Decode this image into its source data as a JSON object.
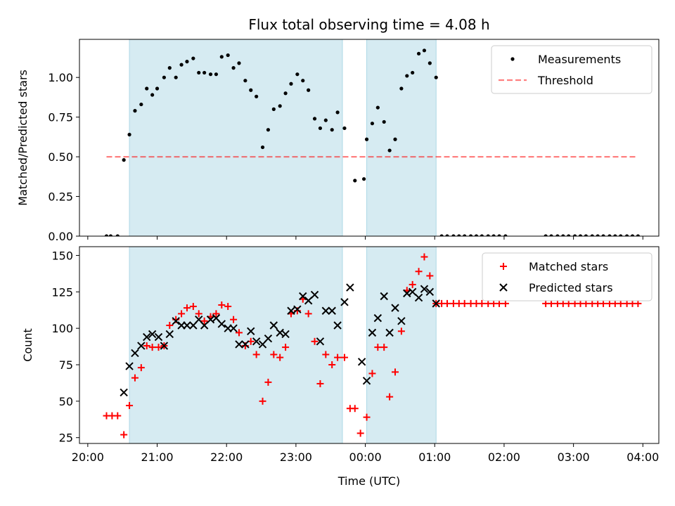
{
  "title": "Flux total observing time = 4.08 h",
  "colors": {
    "shade": "#add8e6",
    "threshold": "#ff0000",
    "measurement": "#000000",
    "matched": "#ff0000",
    "predicted": "#000000"
  },
  "chart_data": [
    {
      "type": "scatter",
      "panel": "top",
      "ylabel": "Matched/Predicted stars",
      "xlabel": "",
      "x_unit": "hours after 20:00 UTC",
      "xlim": [
        -0.12,
        8.23
      ],
      "ylim": [
        0,
        1.24
      ],
      "yticks": [
        "0.00",
        "0.25",
        "0.50",
        "0.75",
        "1.00"
      ],
      "yticks_values": [
        0,
        0.25,
        0.5,
        0.75,
        1.0
      ],
      "legend": [
        "Measurements",
        "Threshold"
      ],
      "legend_position": "top-right",
      "shaded_intervals": [
        [
          0.6,
          3.67
        ],
        [
          4.02,
          5.02
        ]
      ],
      "threshold": {
        "name": "Threshold",
        "y": 0.5,
        "x_range": [
          0.27,
          7.92
        ]
      },
      "series": [
        {
          "name": "Measurements",
          "x": [
            0.27,
            0.33,
            0.43,
            0.52,
            0.6,
            0.68,
            0.77,
            0.85,
            0.93,
            1.0,
            1.1,
            1.18,
            1.27,
            1.35,
            1.43,
            1.52,
            1.6,
            1.68,
            1.77,
            1.85,
            1.93,
            2.02,
            2.1,
            2.18,
            2.27,
            2.35,
            2.43,
            2.52,
            2.6,
            2.68,
            2.77,
            2.85,
            2.93,
            3.02,
            3.1,
            3.18,
            3.27,
            3.35,
            3.43,
            3.52,
            3.6,
            3.7,
            3.85,
            3.98,
            4.02,
            4.1,
            4.18,
            4.27,
            4.35,
            4.43,
            4.52,
            4.6,
            4.68,
            4.77,
            4.85,
            4.93,
            5.02,
            5.1,
            5.18,
            5.27,
            5.35,
            5.43,
            5.52,
            5.6,
            5.68,
            5.77,
            5.85,
            5.93,
            6.02,
            6.6,
            6.68,
            6.77,
            6.85,
            6.93,
            7.02,
            7.1,
            7.18,
            7.27,
            7.35,
            7.43,
            7.52,
            7.6,
            7.68,
            7.77,
            7.85,
            7.93
          ],
          "y": [
            0,
            0,
            0,
            0.48,
            0.64,
            0.79,
            0.83,
            0.93,
            0.89,
            0.93,
            1.0,
            1.06,
            1.0,
            1.08,
            1.1,
            1.12,
            1.03,
            1.03,
            1.02,
            1.02,
            1.13,
            1.14,
            1.06,
            1.09,
            0.98,
            0.92,
            0.88,
            0.56,
            0.67,
            0.8,
            0.82,
            0.9,
            0.96,
            1.02,
            0.98,
            0.92,
            0.74,
            0.68,
            0.73,
            0.67,
            0.78,
            0.68,
            0.35,
            0.36,
            0.61,
            0.71,
            0.81,
            0.72,
            0.54,
            0.61,
            0.93,
            1.01,
            1.03,
            1.15,
            1.17,
            1.09,
            1.0,
            0,
            0,
            0,
            0,
            0,
            0,
            0,
            0,
            0,
            0,
            0,
            0,
            0,
            0,
            0,
            0,
            0,
            0,
            0,
            0,
            0,
            0,
            0,
            0,
            0,
            0,
            0,
            0,
            0
          ]
        }
      ]
    },
    {
      "type": "scatter",
      "panel": "bottom",
      "ylabel": "Count",
      "xlabel": "Time (UTC)",
      "x_unit": "hours after 20:00 UTC",
      "xlim": [
        -0.12,
        8.23
      ],
      "ylim": [
        21,
        156
      ],
      "xticks": [
        "20:00",
        "21:00",
        "22:00",
        "23:00",
        "00:00",
        "01:00",
        "02:00",
        "03:00",
        "04:00"
      ],
      "xticks_values": [
        0,
        1,
        2,
        3,
        4,
        5,
        6,
        7,
        8
      ],
      "yticks": [
        "25",
        "50",
        "75",
        "100",
        "125",
        "150"
      ],
      "yticks_values": [
        25,
        50,
        75,
        100,
        125,
        150
      ],
      "legend": [
        "Matched stars",
        "Predicted stars"
      ],
      "legend_position": "top-right",
      "shaded_intervals": [
        [
          0.6,
          3.67
        ],
        [
          4.02,
          5.02
        ]
      ],
      "series": [
        {
          "name": "Matched stars",
          "x": [
            0.27,
            0.35,
            0.43,
            0.52,
            0.6,
            0.68,
            0.77,
            0.85,
            0.93,
            1.02,
            1.1,
            1.18,
            1.27,
            1.35,
            1.43,
            1.52,
            1.6,
            1.68,
            1.77,
            1.85,
            1.93,
            2.02,
            2.1,
            2.18,
            2.27,
            2.35,
            2.43,
            2.52,
            2.6,
            2.68,
            2.77,
            2.85,
            2.93,
            3.02,
            3.1,
            3.18,
            3.27,
            3.35,
            3.43,
            3.52,
            3.6,
            3.7,
            3.78,
            3.85,
            3.93,
            4.02,
            4.1,
            4.18,
            4.27,
            4.35,
            4.43,
            4.52,
            4.6,
            4.68,
            4.77,
            4.85,
            4.93,
            5.02,
            5.1,
            5.18,
            5.27,
            5.35,
            5.43,
            5.52,
            5.6,
            5.68,
            5.77,
            5.85,
            5.93,
            6.02,
            6.6,
            6.68,
            6.77,
            6.85,
            6.93,
            7.02,
            7.1,
            7.18,
            7.27,
            7.35,
            7.43,
            7.52,
            7.6,
            7.68,
            7.77,
            7.85,
            7.93
          ],
          "y": [
            40,
            40,
            40,
            27,
            47,
            66,
            73,
            88,
            87,
            87,
            88,
            102,
            106,
            110,
            114,
            115,
            110,
            105,
            108,
            110,
            116,
            115,
            106,
            97,
            88,
            91,
            82,
            50,
            63,
            82,
            80,
            87,
            110,
            112,
            120,
            110,
            91,
            62,
            82,
            75,
            80,
            80,
            45,
            45,
            28,
            39,
            69,
            87,
            87,
            53,
            70,
            98,
            126,
            130,
            139,
            149,
            136,
            117,
            117,
            117,
            117,
            117,
            117,
            117,
            117,
            117,
            117,
            117,
            117,
            117,
            117,
            117,
            117,
            117,
            117,
            117,
            117,
            117,
            117,
            117,
            117,
            117,
            117,
            117,
            117,
            117,
            117
          ]
        },
        {
          "name": "Predicted stars",
          "x": [
            0.52,
            0.6,
            0.68,
            0.77,
            0.85,
            0.93,
            1.02,
            1.1,
            1.18,
            1.27,
            1.35,
            1.43,
            1.52,
            1.6,
            1.68,
            1.77,
            1.85,
            1.93,
            2.02,
            2.1,
            2.18,
            2.27,
            2.35,
            2.43,
            2.52,
            2.6,
            2.68,
            2.77,
            2.85,
            2.93,
            3.02,
            3.1,
            3.18,
            3.27,
            3.35,
            3.43,
            3.52,
            3.6,
            3.7,
            3.78,
            3.95,
            4.02,
            4.1,
            4.18,
            4.27,
            4.35,
            4.43,
            4.52,
            4.6,
            4.68,
            4.77,
            4.85,
            4.93,
            5.02
          ],
          "y": [
            56,
            74,
            83,
            88,
            94,
            96,
            94,
            88,
            96,
            105,
            102,
            102,
            102,
            106,
            102,
            106,
            107,
            103,
            100,
            100,
            89,
            89,
            98,
            91,
            89,
            93,
            102,
            97,
            96,
            112,
            113,
            122,
            119,
            123,
            91,
            112,
            112,
            102,
            118,
            128,
            77,
            64,
            97,
            107,
            122,
            97,
            114,
            105,
            124,
            125,
            121,
            127,
            125,
            117
          ]
        }
      ]
    }
  ]
}
